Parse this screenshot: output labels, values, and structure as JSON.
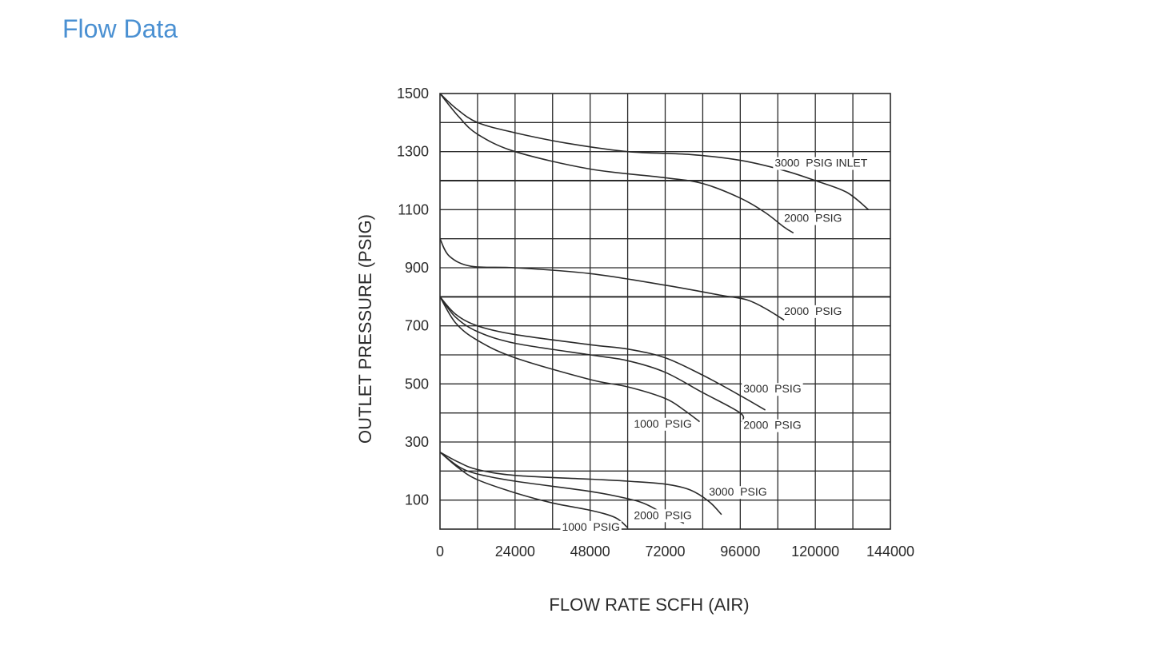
{
  "page": {
    "title": "Flow Data"
  },
  "chart_data": {
    "type": "line",
    "xlabel": "FLOW  RATE  SCFH (AIR)",
    "ylabel": "OUTLET  PRESSURE (PSIG)",
    "xlim": [
      0,
      144000
    ],
    "ylim": [
      0,
      1500
    ],
    "x_ticks": [
      {
        "value": 0,
        "label": "0"
      },
      {
        "value": 24000,
        "label": "24000"
      },
      {
        "value": 48000,
        "label": "48000"
      },
      {
        "value": 72000,
        "label": "72000"
      },
      {
        "value": 96000,
        "label": "96000"
      },
      {
        "value": 120000,
        "label": "120000"
      },
      {
        "value": 144000,
        "label": "144000"
      }
    ],
    "y_ticks": [
      {
        "value": 100,
        "label": "100"
      },
      {
        "value": 300,
        "label": "300"
      },
      {
        "value": 500,
        "label": "500"
      },
      {
        "value": 700,
        "label": "700"
      },
      {
        "value": 900,
        "label": "900"
      },
      {
        "value": 1100,
        "label": "1100"
      },
      {
        "value": 1300,
        "label": "1300"
      },
      {
        "value": 1500,
        "label": "1500"
      }
    ],
    "grid": true,
    "grid_x_step": 12000,
    "grid_y_step": 100,
    "emphasized_y_lines": [
      800,
      1200
    ],
    "series": [
      {
        "name": "3000  PSIG INLET",
        "label_at": [
          107000,
          1248
        ],
        "points": [
          [
            0,
            1500
          ],
          [
            5000,
            1450
          ],
          [
            12000,
            1400
          ],
          [
            24000,
            1365
          ],
          [
            40000,
            1330
          ],
          [
            60000,
            1300
          ],
          [
            80000,
            1290
          ],
          [
            96000,
            1270
          ],
          [
            110000,
            1235
          ],
          [
            120000,
            1200
          ],
          [
            130000,
            1160
          ],
          [
            137000,
            1100
          ]
        ]
      },
      {
        "name": "2000  PSIG",
        "label_at": [
          110000,
          1058
        ],
        "points": [
          [
            0,
            1500
          ],
          [
            6000,
            1420
          ],
          [
            12000,
            1360
          ],
          [
            24000,
            1300
          ],
          [
            48000,
            1240
          ],
          [
            72000,
            1210
          ],
          [
            84000,
            1190
          ],
          [
            96000,
            1140
          ],
          [
            104000,
            1090
          ],
          [
            110000,
            1040
          ],
          [
            113000,
            1020
          ]
        ]
      },
      {
        "name": "2000  PSIG",
        "label_at": [
          110000,
          738
        ],
        "points": [
          [
            0,
            1000
          ],
          [
            3000,
            940
          ],
          [
            10000,
            905
          ],
          [
            24000,
            900
          ],
          [
            48000,
            880
          ],
          [
            72000,
            840
          ],
          [
            90000,
            805
          ],
          [
            98000,
            790
          ],
          [
            104000,
            760
          ],
          [
            110000,
            720
          ]
        ]
      },
      {
        "name": "3000  PSIG",
        "label_at": [
          97000,
          470
        ],
        "points": [
          [
            0,
            800
          ],
          [
            5000,
            740
          ],
          [
            12000,
            700
          ],
          [
            24000,
            670
          ],
          [
            48000,
            635
          ],
          [
            60000,
            620
          ],
          [
            72000,
            590
          ],
          [
            84000,
            530
          ],
          [
            96000,
            460
          ],
          [
            104000,
            410
          ]
        ]
      },
      {
        "name": "2000  PSIG",
        "label_at": [
          97000,
          345
        ],
        "points": [
          [
            0,
            800
          ],
          [
            5000,
            730
          ],
          [
            12000,
            680
          ],
          [
            24000,
            640
          ],
          [
            48000,
            600
          ],
          [
            60000,
            580
          ],
          [
            72000,
            540
          ],
          [
            84000,
            470
          ],
          [
            96000,
            400
          ],
          [
            96500,
            370
          ]
        ]
      },
      {
        "name": "1000  PSIG",
        "label_at": [
          62000,
          350
        ],
        "points": [
          [
            0,
            800
          ],
          [
            5000,
            710
          ],
          [
            12000,
            650
          ],
          [
            24000,
            590
          ],
          [
            48000,
            515
          ],
          [
            60000,
            490
          ],
          [
            72000,
            450
          ],
          [
            78000,
            410
          ],
          [
            83000,
            370
          ]
        ]
      },
      {
        "name": "3000  PSIG",
        "label_at": [
          86000,
          115
        ],
        "points": [
          [
            0,
            265
          ],
          [
            6000,
            230
          ],
          [
            12000,
            205
          ],
          [
            24000,
            185
          ],
          [
            48000,
            172
          ],
          [
            60000,
            165
          ],
          [
            72000,
            155
          ],
          [
            80000,
            135
          ],
          [
            86000,
            95
          ],
          [
            90000,
            50
          ]
        ]
      },
      {
        "name": "2000  PSIG",
        "label_at": [
          62000,
          35
        ],
        "points": [
          [
            0,
            265
          ],
          [
            6000,
            215
          ],
          [
            12000,
            190
          ],
          [
            24000,
            165
          ],
          [
            48000,
            130
          ],
          [
            60000,
            105
          ],
          [
            66000,
            85
          ],
          [
            72000,
            50
          ],
          [
            78000,
            20
          ]
        ]
      },
      {
        "name": "1000  PSIG",
        "label_at": [
          39000,
          -5
        ],
        "points": [
          [
            0,
            265
          ],
          [
            6000,
            210
          ],
          [
            12000,
            170
          ],
          [
            24000,
            125
          ],
          [
            36000,
            90
          ],
          [
            48000,
            65
          ],
          [
            56000,
            40
          ],
          [
            60000,
            5
          ]
        ]
      }
    ]
  }
}
